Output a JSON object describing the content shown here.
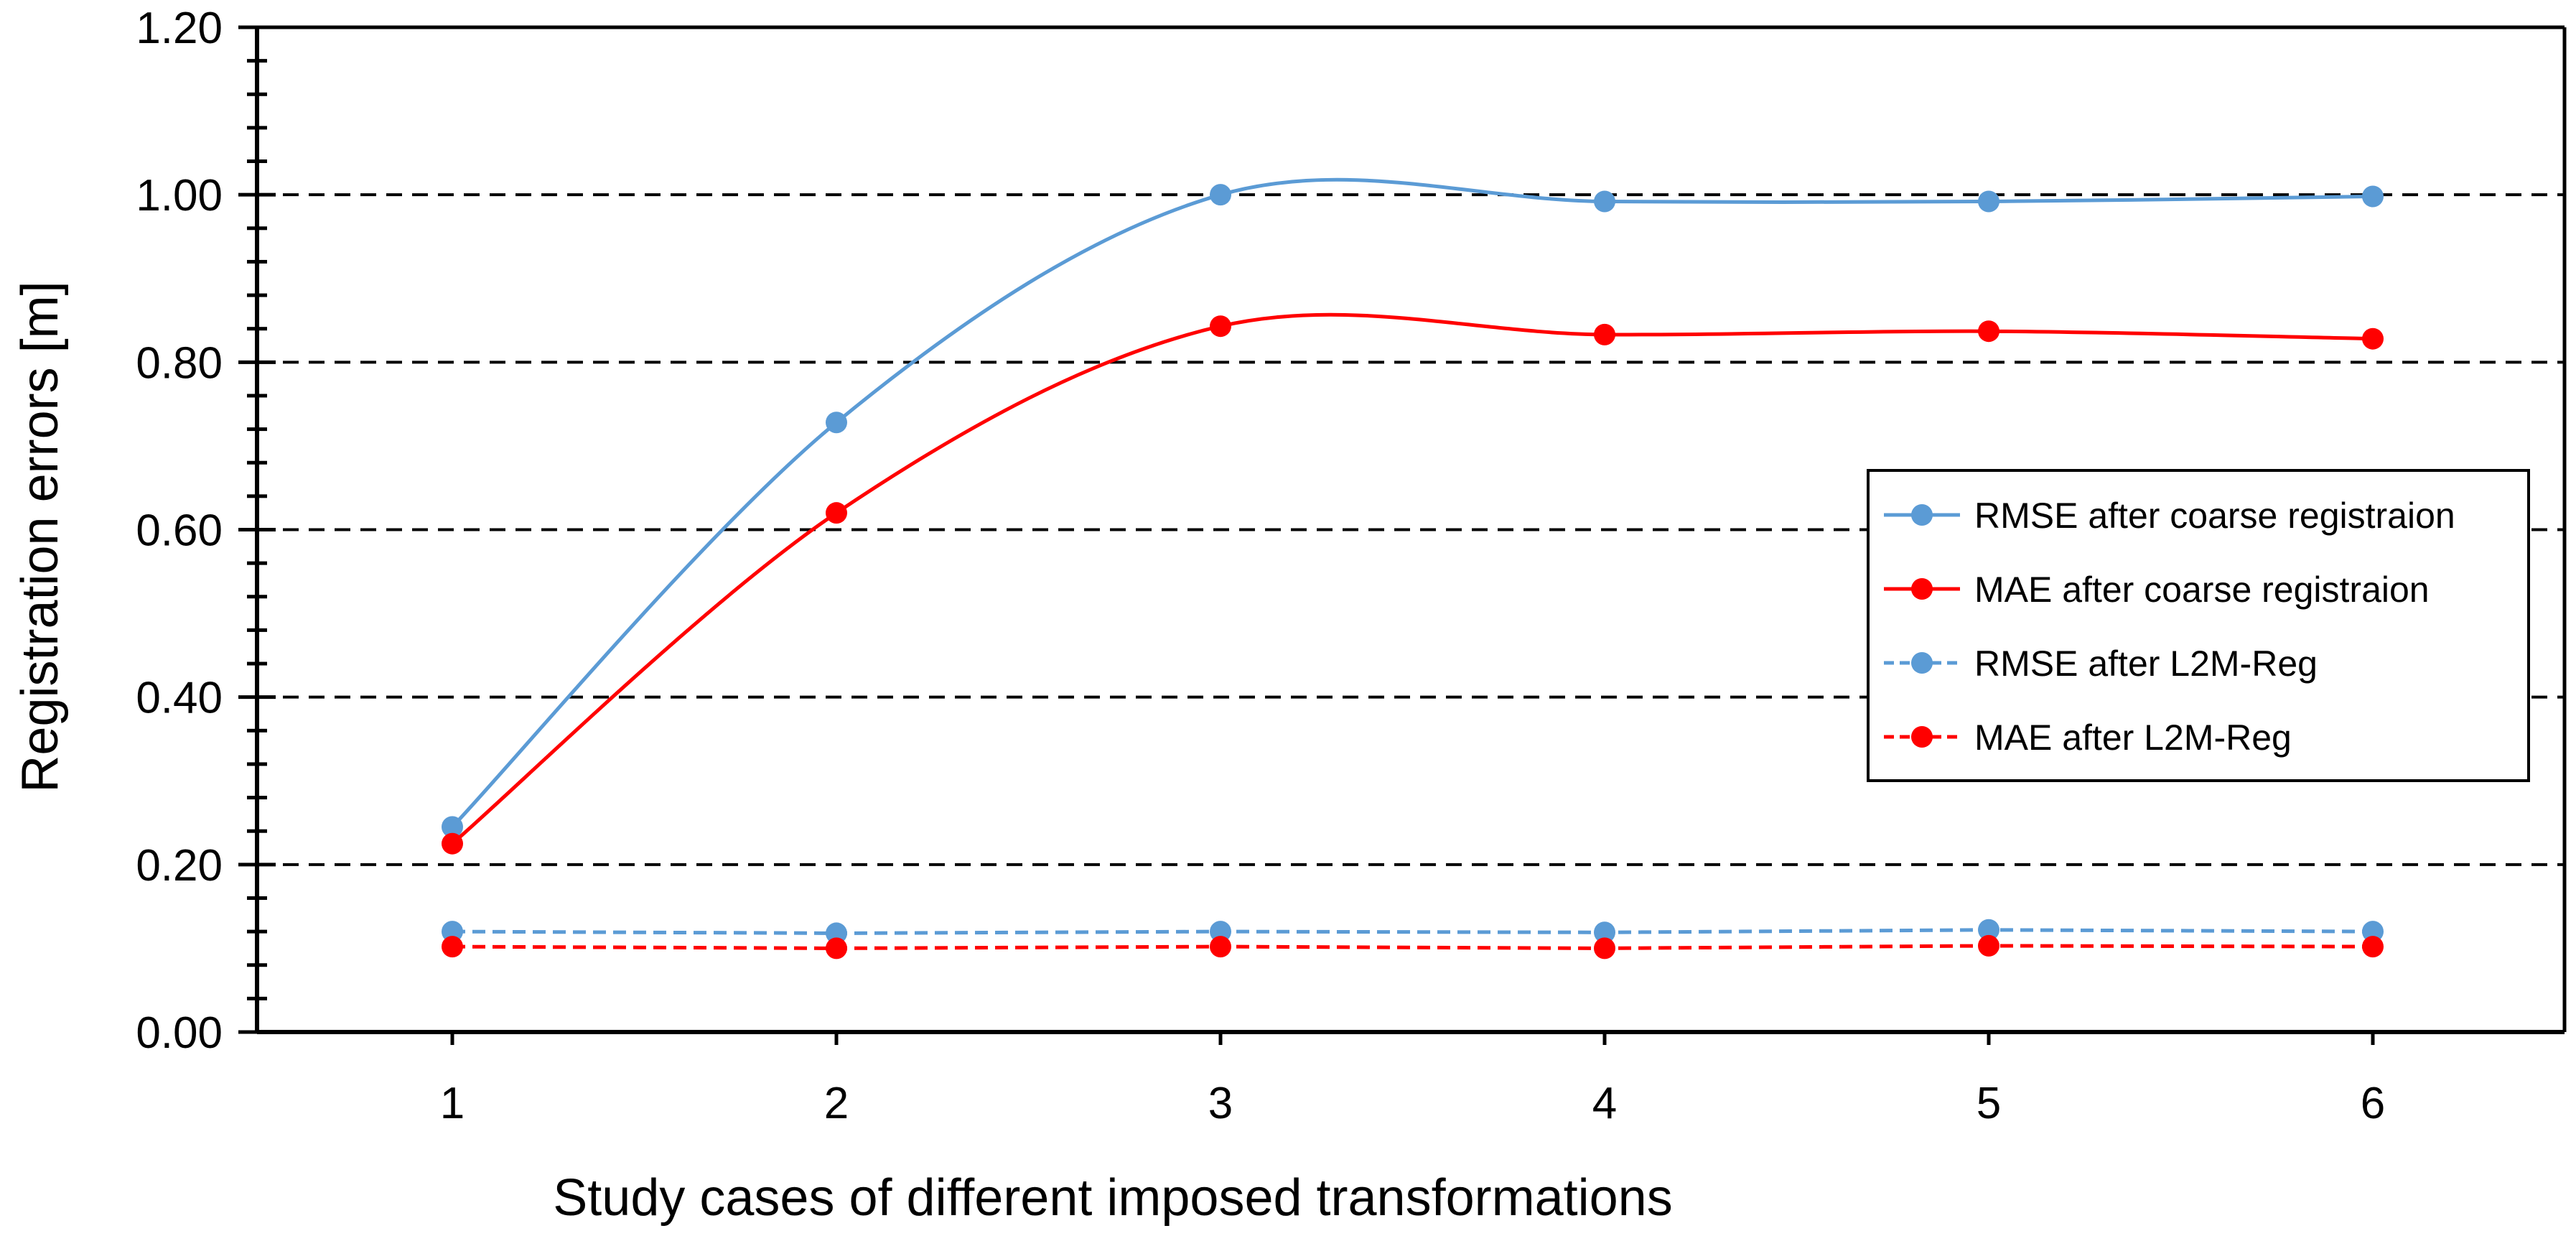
{
  "chart_data": {
    "type": "line",
    "title": "",
    "xlabel": "Study cases of different imposed transformations",
    "ylabel": "Registration errors [m]",
    "categories": [
      "1",
      "2",
      "3",
      "4",
      "5",
      "6"
    ],
    "ylim": [
      0,
      1.2
    ],
    "yticks": [
      "0.00",
      "0.20",
      "0.40",
      "0.60",
      "0.80",
      "1.00",
      "1.20"
    ],
    "grid": "horizontal dashed",
    "legend_position": "right",
    "series": [
      {
        "name": "RMSE after coarse registraion",
        "color": "#5b9bd5",
        "style": "solid",
        "smooth": true,
        "values": [
          0.245,
          0.728,
          1.0,
          0.992,
          0.992,
          0.998
        ]
      },
      {
        "name": "MAE after coarse registraion",
        "color": "#ff0000",
        "style": "solid",
        "smooth": true,
        "values": [
          0.225,
          0.62,
          0.843,
          0.833,
          0.837,
          0.828
        ]
      },
      {
        "name": "RMSE after L2M-Reg",
        "color": "#5b9bd5",
        "style": "dashed",
        "smooth": false,
        "values": [
          0.12,
          0.118,
          0.12,
          0.119,
          0.122,
          0.12
        ]
      },
      {
        "name": "MAE after L2M-Reg",
        "color": "#ff0000",
        "style": "dashed",
        "smooth": false,
        "values": [
          0.102,
          0.1,
          0.102,
          0.1,
          0.103,
          0.102
        ]
      }
    ]
  }
}
